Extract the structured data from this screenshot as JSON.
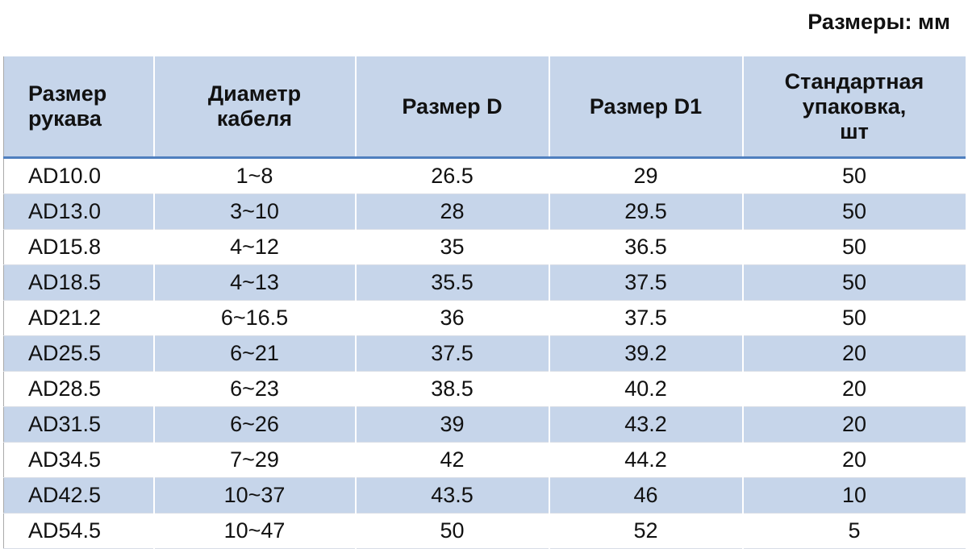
{
  "caption": "Размеры: мм",
  "table": {
    "header": [
      [
        "Размер",
        "рукава"
      ],
      [
        "Диаметр",
        "кабеля"
      ],
      [
        "Размер D"
      ],
      [
        "Размер D1"
      ],
      [
        "Стандартная",
        "упаковка,",
        "шт"
      ]
    ],
    "rows": [
      [
        "AD10.0",
        "1~8",
        "26.5",
        "29",
        "50"
      ],
      [
        "AD13.0",
        "3~10",
        "28",
        "29.5",
        "50"
      ],
      [
        "AD15.8",
        "4~12",
        "35",
        "36.5",
        "50"
      ],
      [
        "AD18.5",
        "4~13",
        "35.5",
        "37.5",
        "50"
      ],
      [
        "AD21.2",
        "6~16.5",
        "36",
        "37.5",
        "50"
      ],
      [
        "AD25.5",
        "6~21",
        "37.5",
        "39.2",
        "20"
      ],
      [
        "AD28.5",
        "6~23",
        "38.5",
        "40.2",
        "20"
      ],
      [
        "AD31.5",
        "6~26",
        "39",
        "43.2",
        "20"
      ],
      [
        "AD34.5",
        "7~29",
        "42",
        "44.2",
        "20"
      ],
      [
        "AD42.5",
        "10~37",
        "43.5",
        "46",
        "10"
      ],
      [
        "AD54.5",
        "10~47",
        "50",
        "52",
        "5"
      ]
    ]
  }
}
